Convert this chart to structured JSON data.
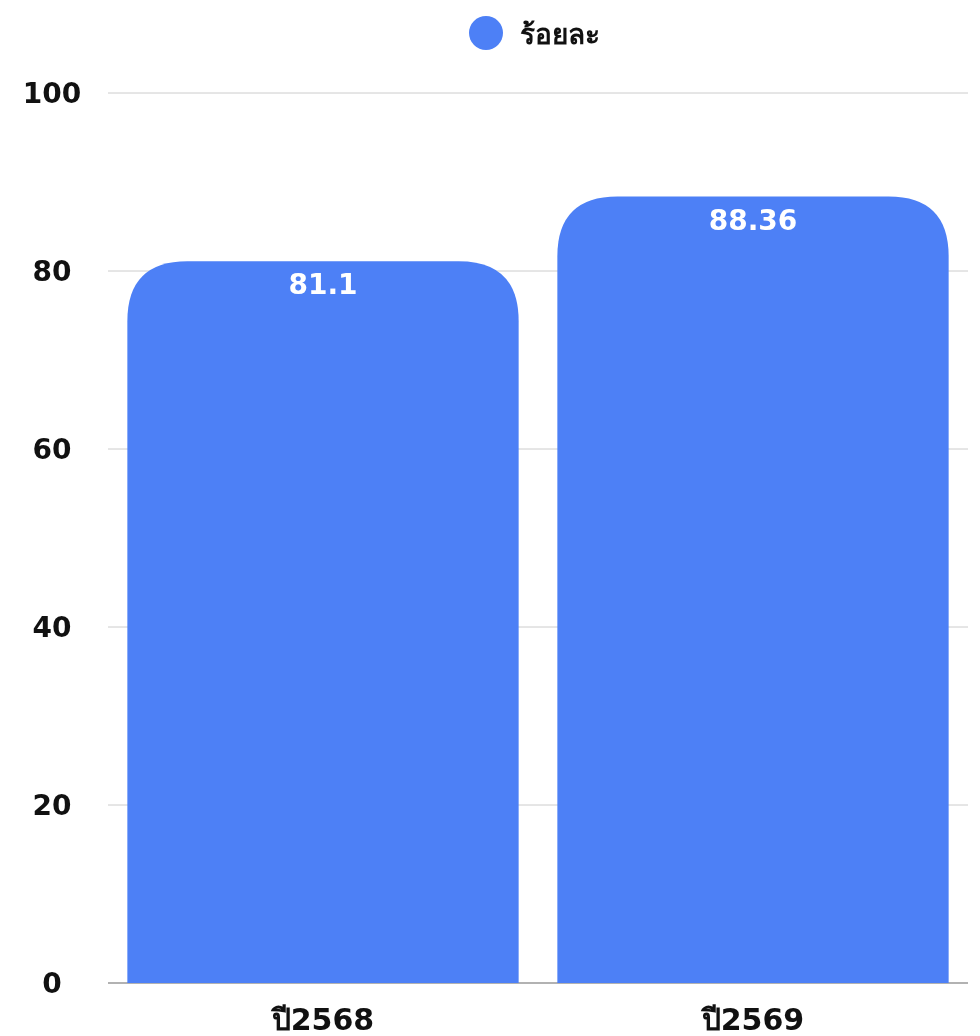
{
  "chart_data": {
    "type": "bar",
    "categories": [
      "ปี2568",
      "ปี2569"
    ],
    "series": [
      {
        "name": "ร้อยละ",
        "color": "#4d80f6",
        "values": [
          81.1,
          88.36
        ]
      }
    ],
    "ylim": [
      0,
      100
    ],
    "yticks": [
      0,
      20,
      40,
      60,
      80,
      100
    ],
    "grid": "y",
    "legend": "top",
    "data_labels": true
  }
}
